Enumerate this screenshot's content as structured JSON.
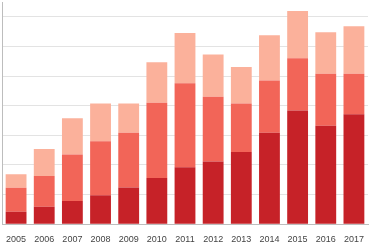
{
  "chart_data": {
    "type": "bar",
    "stacked": true,
    "grid": true,
    "tick_labels": "x",
    "categories": [
      "2005",
      "2006",
      "2007",
      "2008",
      "2009",
      "2010",
      "2011",
      "2012",
      "2013",
      "2014",
      "2015",
      "2016",
      "2017"
    ],
    "ylim": [
      0,
      7.5
    ],
    "yticks": [
      0,
      1,
      2,
      3,
      4,
      5,
      6,
      7
    ],
    "series": [
      {
        "color": "#c62228",
        "values": [
          0.42,
          0.59,
          0.78,
          0.98,
          1.24,
          1.56,
          1.92,
          2.12,
          2.44,
          3.09,
          3.84,
          3.32,
          3.71
        ]
      },
      {
        "color": "#f26558",
        "values": [
          0.81,
          1.04,
          1.57,
          1.82,
          1.85,
          2.54,
          2.84,
          2.18,
          1.63,
          1.76,
          1.76,
          1.76,
          1.37
        ]
      },
      {
        "color": "#fbb19b",
        "values": [
          0.46,
          0.91,
          1.23,
          1.27,
          0.98,
          1.37,
          1.69,
          1.43,
          1.24,
          1.53,
          1.6,
          1.4,
          1.6
        ]
      }
    ]
  }
}
